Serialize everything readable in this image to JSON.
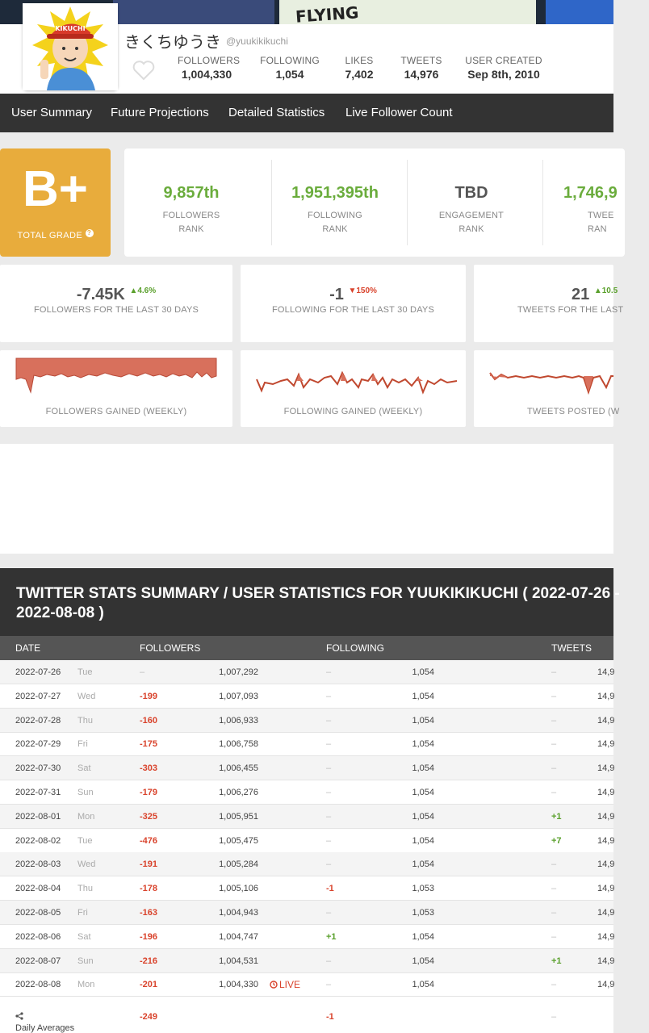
{
  "profile": {
    "name": "きくちゆうき",
    "handle": "@yuukikikuchi",
    "avatar_cap_text": "KIKUCHI",
    "banner_text": "FLYING",
    "stats": [
      {
        "label": "FOLLOWERS",
        "value": "1,004,330"
      },
      {
        "label": "FOLLOWING",
        "value": "1,054"
      },
      {
        "label": "LIKES",
        "value": "7,402"
      },
      {
        "label": "TWEETS",
        "value": "14,976"
      },
      {
        "label": "USER CREATED",
        "value": "Sep 8th, 2010"
      }
    ]
  },
  "nav": [
    "User Summary",
    "Future Projections",
    "Detailed Statistics",
    "Live Follower Count"
  ],
  "grade": {
    "letter": "B+",
    "label": "TOTAL GRADE",
    "help_icon": "?"
  },
  "ranks": [
    {
      "value": "9,857th",
      "line1": "FOLLOWERS",
      "line2": "RANK"
    },
    {
      "value": "1,951,395th",
      "line1": "FOLLOWING",
      "line2": "RANK"
    },
    {
      "value": "TBD",
      "line1": "ENGAGEMENT",
      "line2": "RANK"
    },
    {
      "value": "1,746,9",
      "line1": "TWEE",
      "line2": "RAN"
    }
  ],
  "deltas": [
    {
      "value": "-7.45K",
      "pct": "4.6%",
      "pct_arrow": "▲",
      "label": "FOLLOWERS FOR THE LAST 30 DAYS"
    },
    {
      "value": "-1",
      "pct": "150%",
      "pct_arrow": "▼",
      "label": "FOLLOWING FOR THE LAST 30 DAYS"
    },
    {
      "value": "21",
      "pct": "10.5",
      "pct_arrow": "▲",
      "label": "TWEETS FOR THE LAST"
    }
  ],
  "sparks": [
    {
      "label": "FOLLOWERS GAINED (WEEKLY)"
    },
    {
      "label": "FOLLOWING GAINED (WEEKLY)"
    },
    {
      "label": "TWEETS POSTED (W"
    }
  ],
  "summary": {
    "title": "TWITTER STATS SUMMARY / USER STATISTICS FOR YUUKIKIKUCHI ( 2022-07-26 - 2022-08-08 )",
    "columns": [
      "DATE",
      "FOLLOWERS",
      "FOLLOWING",
      "TWEETS"
    ],
    "rows": [
      {
        "date": "2022-07-26",
        "day": "Tue",
        "fd": "–",
        "fv": "1,007,292",
        "gd": "–",
        "gv": "1,054",
        "td": "–",
        "tv": "14,9"
      },
      {
        "date": "2022-07-27",
        "day": "Wed",
        "fd": "-199",
        "fv": "1,007,093",
        "gd": "–",
        "gv": "1,054",
        "td": "–",
        "tv": "14,9"
      },
      {
        "date": "2022-07-28",
        "day": "Thu",
        "fd": "-160",
        "fv": "1,006,933",
        "gd": "–",
        "gv": "1,054",
        "td": "–",
        "tv": "14,9"
      },
      {
        "date": "2022-07-29",
        "day": "Fri",
        "fd": "-175",
        "fv": "1,006,758",
        "gd": "–",
        "gv": "1,054",
        "td": "–",
        "tv": "14,9"
      },
      {
        "date": "2022-07-30",
        "day": "Sat",
        "fd": "-303",
        "fv": "1,006,455",
        "gd": "–",
        "gv": "1,054",
        "td": "–",
        "tv": "14,9"
      },
      {
        "date": "2022-07-31",
        "day": "Sun",
        "fd": "-179",
        "fv": "1,006,276",
        "gd": "–",
        "gv": "1,054",
        "td": "–",
        "tv": "14,9"
      },
      {
        "date": "2022-08-01",
        "day": "Mon",
        "fd": "-325",
        "fv": "1,005,951",
        "gd": "–",
        "gv": "1,054",
        "td": "+1",
        "tv": "14,9"
      },
      {
        "date": "2022-08-02",
        "day": "Tue",
        "fd": "-476",
        "fv": "1,005,475",
        "gd": "–",
        "gv": "1,054",
        "td": "+7",
        "tv": "14,9"
      },
      {
        "date": "2022-08-03",
        "day": "Wed",
        "fd": "-191",
        "fv": "1,005,284",
        "gd": "–",
        "gv": "1,054",
        "td": "–",
        "tv": "14,9"
      },
      {
        "date": "2022-08-04",
        "day": "Thu",
        "fd": "-178",
        "fv": "1,005,106",
        "gd": "-1",
        "gv": "1,053",
        "td": "–",
        "tv": "14,9"
      },
      {
        "date": "2022-08-05",
        "day": "Fri",
        "fd": "-163",
        "fv": "1,004,943",
        "gd": "–",
        "gv": "1,053",
        "td": "–",
        "tv": "14,9"
      },
      {
        "date": "2022-08-06",
        "day": "Sat",
        "fd": "-196",
        "fv": "1,004,747",
        "gd": "+1",
        "gv": "1,054",
        "td": "–",
        "tv": "14,9"
      },
      {
        "date": "2022-08-07",
        "day": "Sun",
        "fd": "-216",
        "fv": "1,004,531",
        "gd": "–",
        "gv": "1,054",
        "td": "+1",
        "tv": "14,9"
      },
      {
        "date": "2022-08-08",
        "day": "Mon",
        "fd": "-201",
        "fv": "1,004,330",
        "gd": "–",
        "gv": "1,054",
        "td": "–",
        "tv": "14,9",
        "live": "LIVE"
      }
    ],
    "averages": {
      "label": "Daily Averages",
      "followers": "-249",
      "following": "-1",
      "tweets": "–"
    }
  },
  "colors": {
    "accent_green": "#6aac3c",
    "negative_red": "#d9432c",
    "grade_orange": "#e8ac3c",
    "nav_dark": "#333333"
  }
}
